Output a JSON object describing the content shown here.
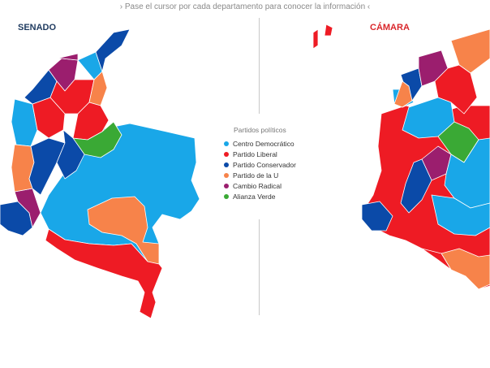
{
  "hint": "› Pase el cursor por cada departamento para conocer la información ‹",
  "maps": {
    "senado_title": "SENADO",
    "camara_title": "CÁMARA"
  },
  "legend": {
    "title": "Partidos políticos",
    "items": [
      {
        "label": "Centro Democrático",
        "color": "#19a7e8"
      },
      {
        "label": "Partido Liberal",
        "color": "#ee1b24"
      },
      {
        "label": "Partido Conservador",
        "color": "#0b4aa8"
      },
      {
        "label": "Partido de la U",
        "color": "#f7834a"
      },
      {
        "label": "Cambio Radical",
        "color": "#9b1e6e"
      },
      {
        "label": "Alianza Verde",
        "color": "#3aa935"
      }
    ]
  }
}
